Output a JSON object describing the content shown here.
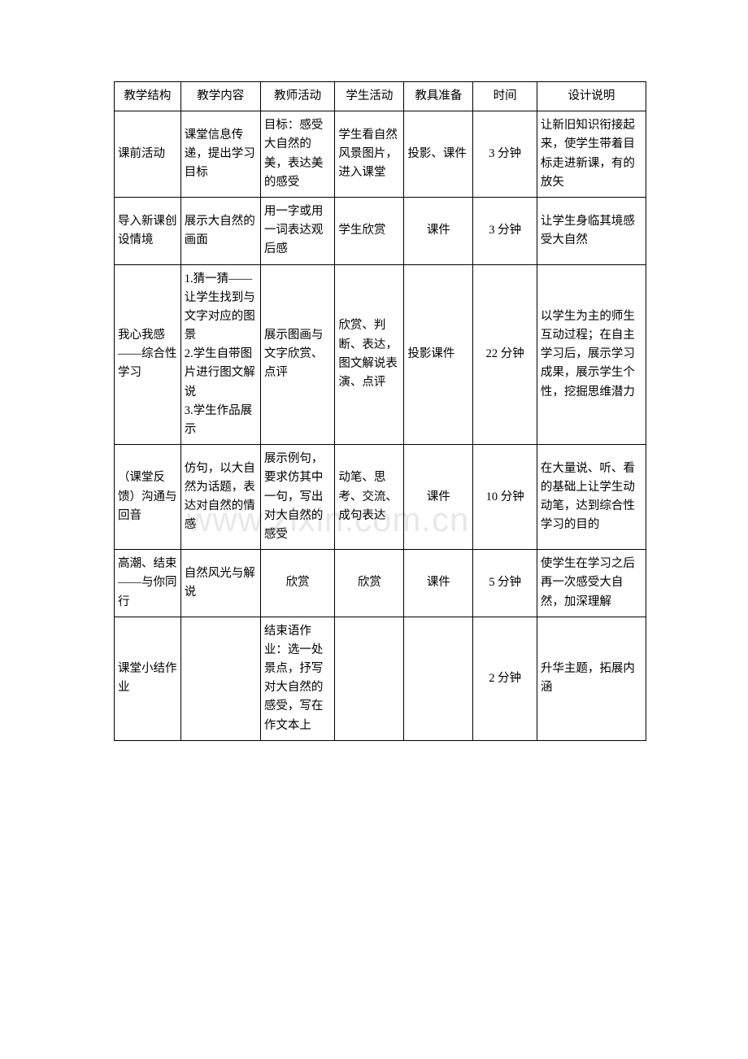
{
  "watermark": "www.zixin.com.cn",
  "header": {
    "c1": "教学结构",
    "c2": "教学内容",
    "c3": "教师活动",
    "c4": "学生活动",
    "c5": "教具准备",
    "c6": "时间",
    "c7": "设计说明"
  },
  "rows": [
    {
      "c1": "课前活动",
      "c2": "课堂信息传递，提出学习目标",
      "c3": "目标：感受大自然的美，表达美的感受",
      "c4": "学生看自然风景图片，进入课堂",
      "c5": "投影、课件",
      "c6": "3 分钟",
      "c7": "让新旧知识衔接起来，使学生带着目标走进新课，有的放矢"
    },
    {
      "c1": "导入新课创设情境",
      "c2": "展示大自然的画面",
      "c3": "用一字或用一词表达观后感",
      "c4": "学生欣赏",
      "c5": "课件",
      "c6": "3 分钟",
      "c7": "让学生身临其境感受大自然"
    },
    {
      "c1": "我心我感——综合性学习",
      "c2": "1.猜一猜——让学生找到与文字对应的图景\n2.学生自带图片进行图文解说\n3.学生作品展示",
      "c3": "展示图画与文字欣赏、点评",
      "c4": "欣赏、判断、表达，图文解说表演、点评",
      "c5": "投影课件",
      "c6": "22 分钟",
      "c7": "以学生为主的师生互动过程；在自主学习后，展示学习成果，展示学生个性，挖掘思维潜力"
    },
    {
      "c1": "（课堂反馈）沟通与回音",
      "c2": "仿句，以大自然为话题，表达对自然的情感",
      "c3": "展示例句，要求仿其中一句，写出对大自然的感受",
      "c4": "动笔、思考、交流、成句表达",
      "c5": "课件",
      "c6": "10 分钟",
      "c7": "在大量说、听、看的基础上让学生动动笔，达到综合性学习的目的"
    },
    {
      "c1": "高潮、结束——与你同行",
      "c2": "自然风光与解说",
      "c3": "欣赏",
      "c4": "欣赏",
      "c5": "课件",
      "c6": "5 分钟",
      "c7": "使学生在学习之后再一次感受大自然，加深理解"
    },
    {
      "c1": "课堂小结作业",
      "c2": "",
      "c3": "结束语作业：选一处景点，抒写对大自然的感受，写在作文本上",
      "c4": "",
      "c5": "",
      "c6": "2 分钟",
      "c7": "升华主题，拓展内涵"
    }
  ]
}
